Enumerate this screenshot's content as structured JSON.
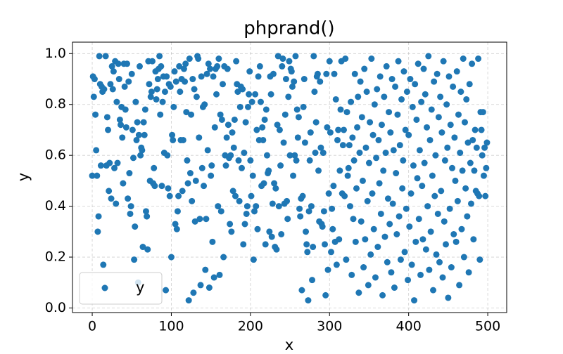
{
  "chart_data": {
    "type": "scatter",
    "title": "phprand()",
    "x_label": "x",
    "y_label": "y",
    "x": [
      0,
      1,
      2,
      3,
      4,
      5,
      6,
      7,
      8,
      9,
      10,
      11,
      12,
      13,
      14,
      15,
      16,
      17,
      18,
      19,
      20,
      21,
      22,
      23,
      24,
      25,
      26,
      27,
      28,
      29,
      30,
      31,
      32,
      33,
      34,
      35,
      36,
      37,
      38,
      39,
      40,
      41,
      42,
      43,
      44,
      45,
      46,
      47,
      48,
      49,
      50,
      51,
      52,
      53,
      54,
      55,
      56,
      57,
      58,
      59,
      60,
      61,
      62,
      63,
      64,
      65,
      66,
      67,
      68,
      69,
      70,
      71,
      72,
      73,
      74,
      75,
      76,
      77,
      78,
      79,
      80,
      81,
      82,
      83,
      84,
      85,
      86,
      87,
      88,
      89,
      90,
      91,
      92,
      93,
      94,
      95,
      96,
      97,
      98,
      99,
      100,
      101,
      102,
      103,
      104,
      105,
      106,
      107,
      108,
      109,
      110,
      111,
      112,
      113,
      114,
      115,
      116,
      117,
      118,
      119,
      120,
      121,
      122,
      123,
      124,
      125,
      126,
      127,
      128,
      129,
      130,
      131,
      132,
      133,
      134,
      135,
      136,
      137,
      138,
      139,
      140,
      141,
      142,
      143,
      144,
      145,
      146,
      147,
      148,
      149,
      150,
      151,
      152,
      153,
      154,
      155,
      156,
      157,
      158,
      159,
      160,
      161,
      162,
      163,
      164,
      165,
      166,
      167,
      168,
      169,
      170,
      171,
      172,
      173,
      174,
      175,
      176,
      177,
      178,
      179,
      180,
      181,
      182,
      183,
      184,
      185,
      186,
      187,
      188,
      189,
      190,
      191,
      192,
      193,
      194,
      195,
      196,
      197,
      198,
      199,
      200,
      201,
      202,
      203,
      204,
      205,
      206,
      207,
      208,
      209,
      210,
      211,
      212,
      213,
      214,
      215,
      216,
      217,
      218,
      219,
      220,
      221,
      222,
      223,
      224,
      225,
      226,
      227,
      228,
      229,
      230,
      231,
      232,
      233,
      234,
      235,
      236,
      237,
      238,
      239,
      240,
      241,
      242,
      243,
      244,
      245,
      246,
      247,
      248,
      249,
      250,
      251,
      252,
      253,
      254,
      255,
      256,
      257,
      258,
      259,
      260,
      261,
      262,
      263,
      264,
      265,
      266,
      267,
      268,
      269,
      270,
      271,
      272,
      273,
      274,
      275,
      276,
      277,
      278,
      279,
      280,
      281,
      282,
      283,
      284,
      285,
      286,
      287,
      288,
      289,
      290,
      291,
      292,
      293,
      294,
      295,
      296,
      297,
      298,
      299,
      300,
      301,
      302,
      303,
      304,
      305,
      306,
      307,
      308,
      309,
      310,
      311,
      312,
      313,
      314,
      315,
      316,
      317,
      318,
      319,
      320,
      321,
      322,
      323,
      324,
      325,
      326,
      327,
      328,
      329,
      330,
      331,
      332,
      333,
      334,
      335,
      336,
      337,
      338,
      339,
      340,
      341,
      342,
      343,
      344,
      345,
      346,
      347,
      348,
      349,
      350,
      351,
      352,
      353,
      354,
      355,
      356,
      357,
      358,
      359,
      360,
      361,
      362,
      363,
      364,
      365,
      366,
      367,
      368,
      369,
      370,
      371,
      372,
      373,
      374,
      375,
      376,
      377,
      378,
      379,
      380,
      381,
      382,
      383,
      384,
      385,
      386,
      387,
      388,
      389,
      390,
      391,
      392,
      393,
      394,
      395,
      396,
      397,
      398,
      399,
      400,
      401,
      402,
      403,
      404,
      405,
      406,
      407,
      408,
      409,
      410,
      411,
      412,
      413,
      414,
      415,
      416,
      417,
      418,
      419,
      420,
      421,
      422,
      423,
      424,
      425,
      426,
      427,
      428,
      429,
      430,
      431,
      432,
      433,
      434,
      435,
      436,
      437,
      438,
      439,
      440,
      441,
      442,
      443,
      444,
      445,
      446,
      447,
      448,
      449,
      450,
      451,
      452,
      453,
      454,
      455,
      456,
      457,
      458,
      459,
      460,
      461,
      462,
      463,
      464,
      465,
      466,
      467,
      468,
      469,
      470,
      471,
      472,
      473,
      474,
      475,
      476,
      477,
      478,
      479,
      480,
      481,
      482,
      483,
      484,
      485,
      486,
      487,
      488,
      489,
      490,
      491,
      492,
      493,
      494,
      495,
      496,
      497,
      498,
      499
    ],
    "series": [
      {
        "name": "y",
        "color": "#1f77b4",
        "values": [
          0.52,
          0.91,
          0.83,
          0.9,
          0.76,
          0.62,
          0.52,
          0.3,
          0.36,
          0.99,
          0.88,
          0.56,
          0.87,
          0.85,
          0.17,
          0.86,
          0.08,
          0.99,
          0.56,
          0.75,
          0.7,
          0.46,
          0.57,
          0.88,
          0.43,
          0.95,
          0.86,
          0.93,
          0.55,
          0.97,
          0.41,
          0.81,
          0.57,
          0.96,
          0.9,
          0.74,
          0.72,
          0.79,
          0.67,
          0.49,
          0.96,
          0.87,
          0.78,
          0.71,
          0.96,
          0.43,
          0.89,
          0.53,
          0.37,
          0.4,
          0.92,
          0.7,
          0.59,
          0.19,
          0.32,
          0.81,
          0.66,
          0.73,
          0.1,
          0.68,
          0.95,
          0.6,
          0.63,
          0.62,
          0.24,
          0.73,
          0.68,
          0.78,
          0.38,
          0.36,
          0.23,
          0.97,
          0.88,
          0.5,
          0.83,
          0.85,
          0.97,
          0.49,
          0.55,
          0.48,
          0.93,
          0.82,
          0.86,
          0.9,
          0.94,
          0.99,
          0.76,
          0.95,
          0.48,
          0.81,
          0.91,
          0.61,
          0.85,
          0.07,
          0.91,
          0.6,
          0.47,
          0.88,
          0.44,
          0.87,
          0.2,
          0.68,
          0.66,
          0.79,
          0.93,
          0.33,
          0.89,
          0.31,
          0.38,
          0.44,
          0.95,
          0.85,
          0.66,
          0.9,
          0.46,
          0.66,
          0.94,
          0.89,
          0.96,
          0.77,
          0.58,
          0.49,
          0.03,
          0.98,
          0.53,
          0.76,
          0.42,
          0.9,
          0.06,
          0.86,
          0.34,
          0.5,
          0.83,
          0.99,
          0.98,
          0.67,
          0.35,
          0.09,
          0.91,
          0.55,
          0.79,
          0.48,
          0.8,
          0.15,
          0.35,
          0.92,
          0.62,
          0.96,
          0.08,
          0.94,
          0.52,
          0.56,
          0.26,
          0.91,
          0.12,
          0.71,
          0.94,
          0.84,
          0.95,
          0.4,
          0.98,
          0.13,
          0.76,
          0.38,
          0.74,
          0.88,
          0.2,
          0.95,
          0.6,
          0.56,
          0.67,
          0.94,
          0.72,
          0.59,
          0.33,
          0.6,
          0.3,
          0.69,
          0.46,
          0.63,
          0.74,
          0.44,
          0.97,
          0.88,
          0.85,
          0.58,
          0.42,
          0.79,
          0.87,
          0.55,
          0.86,
          0.25,
          0.61,
          0.33,
          0.73,
          0.37,
          0.4,
          0.79,
          0.84,
          0.93,
          0.58,
          0.44,
          0.81,
          0.52,
          0.19,
          0.38,
          0.84,
          0.4,
          0.7,
          0.31,
          0.91,
          0.66,
          0.95,
          0.81,
          0.48,
          0.71,
          0.66,
          0.49,
          0.74,
          0.25,
          0.78,
          0.6,
          0.53,
          0.54,
          0.3,
          0.91,
          0.84,
          0.28,
          0.41,
          0.92,
          0.49,
          0.24,
          0.47,
          0.23,
          0.72,
          0.99,
          0.4,
          0.7,
          0.56,
          0.29,
          0.95,
          0.98,
          0.65,
          0.41,
          0.76,
          0.9,
          0.42,
          0.35,
          0.83,
          0.97,
          0.6,
          0.94,
          0.93,
          0.87,
          0.52,
          0.89,
          0.6,
          0.99,
          0.58,
          0.78,
          0.67,
          0.75,
          0.39,
          0.36,
          0.43,
          0.07,
          0.44,
          0.79,
          0.9,
          0.65,
          0.3,
          0.25,
          0.22,
          0.03,
          0.38,
          0.58,
          0.69,
          0.4,
          0.11,
          0.24,
          0.99,
          0.85,
          0.61,
          0.73,
          0.91,
          0.92,
          0.54,
          0.34,
          0.89,
          0.63,
          0.33,
          0.32,
          0.61,
          0.38,
          0.25,
          0.05,
          0.92,
          0.71,
          0.15,
          0.45,
          0.97,
          0.69,
          0.22,
          0.39,
          0.31,
          0.48,
          0.92,
          0.26,
          0.82,
          0.17,
          0.66,
          0.7,
          0.27,
          0.54,
          0.78,
          0.97,
          0.45,
          0.64,
          0.7,
          0.44,
          0.98,
          0.19,
          0.77,
          0.52,
          0.55,
          0.64,
          0.4,
          0.81,
          0.13,
          0.67,
          0.35,
          0.58,
          0.92,
          0.26,
          0.47,
          0.71,
          0.83,
          0.06,
          0.61,
          0.89,
          0.34,
          0.75,
          0.5,
          0.16,
          0.94,
          0.27,
          0.63,
          0.85,
          0.42,
          0.09,
          0.57,
          0.73,
          0.21,
          0.98,
          0.45,
          0.68,
          0.31,
          0.8,
          0.12,
          0.59,
          0.86,
          0.24,
          0.66,
          0.49,
          0.91,
          0.37,
          0.72,
          0.05,
          0.54,
          0.83,
          0.28,
          0.61,
          0.95,
          0.18,
          0.43,
          0.77,
          0.33,
          0.69,
          0.14,
          0.9,
          0.41,
          0.62,
          0.08,
          0.87,
          0.53,
          0.29,
          0.76,
          0.97,
          0.36,
          0.64,
          0.19,
          0.82,
          0.47,
          0.58,
          0.93,
          0.22,
          0.7,
          0.39,
          0.85,
          0.11,
          0.68,
          0.32,
          0.9,
          0.45,
          0.17,
          0.79,
          0.56,
          0.03,
          0.88,
          0.26,
          0.74,
          0.51,
          0.96,
          0.35,
          0.62,
          0.13,
          0.81,
          0.48,
          0.27,
          0.94,
          0.57,
          0.84,
          0.23,
          0.71,
          0.4,
          0.99,
          0.15,
          0.66,
          0.3,
          0.78,
          0.52,
          0.07,
          0.89,
          0.44,
          0.6,
          0.21,
          0.92,
          0.37,
          0.75,
          0.18,
          0.83,
          0.46,
          0.69,
          0.12,
          0.97,
          0.34,
          0.58,
          0.25,
          0.8,
          0.63,
          0.04,
          0.91,
          0.39,
          0.72,
          0.16,
          0.55,
          0.87,
          0.29,
          0.67,
          0.5,
          0.26,
          0.93,
          0.42,
          0.76,
          0.09,
          0.61,
          0.85,
          0.31,
          0.54,
          0.98,
          0.2,
          0.73,
          0.47,
          0.82,
          0.36,
          0.65,
          0.14,
          0.88,
          0.57,
          0.41,
          0.96,
          0.66,
          0.27,
          0.54,
          0.7,
          0.46,
          0.63,
          0.45,
          0.98,
          0.44,
          0.19,
          0.77,
          0.7,
          0.6,
          0.77,
          0.52,
          0.63,
          0.44,
          0.55,
          0.65
        ]
      }
    ],
    "xlim": [
      -24.95,
      523.95
    ],
    "ylim": [
      -0.018,
      1.045
    ],
    "xticks": [
      0,
      100,
      200,
      300,
      400,
      500
    ],
    "yticks": [
      {
        "value": 0,
        "label": "0.0"
      },
      0.2,
      0.4,
      0.6,
      0.8,
      {
        "value": 1,
        "label": "1.0"
      }
    ],
    "grid": true,
    "legend": "lower left"
  }
}
